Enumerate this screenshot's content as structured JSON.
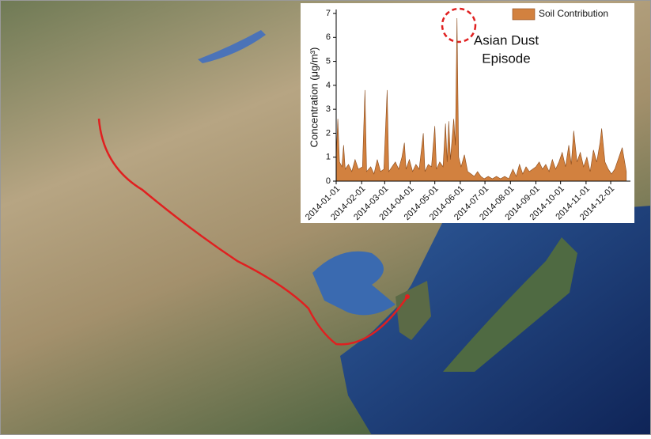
{
  "chart_data": {
    "type": "area",
    "annotation_lines": [
      "Asian Dust",
      "Episode"
    ],
    "y_label": "Concentration (μg/m³)",
    "legend": "upper right",
    "x": [
      "2014-01-01",
      "2014-01-03",
      "2014-01-05",
      "2014-01-08",
      "2014-01-10",
      "2014-01-12",
      "2014-01-16",
      "2014-01-20",
      "2014-01-24",
      "2014-01-28",
      "2014-02-02",
      "2014-02-05",
      "2014-02-07",
      "2014-02-12",
      "2014-02-16",
      "2014-02-20",
      "2014-02-24",
      "2014-02-28",
      "2014-03-04",
      "2014-03-06",
      "2014-03-10",
      "2014-03-14",
      "2014-03-18",
      "2014-03-22",
      "2014-03-25",
      "2014-03-27",
      "2014-03-31",
      "2014-04-04",
      "2014-04-08",
      "2014-04-12",
      "2014-04-15",
      "2014-04-17",
      "2014-04-19",
      "2014-04-23",
      "2014-04-27",
      "2014-05-01",
      "2014-05-03",
      "2014-05-07",
      "2014-05-11",
      "2014-05-14",
      "2014-05-16",
      "2014-05-18",
      "2014-05-20",
      "2014-05-24",
      "2014-05-26",
      "2014-05-28",
      "2014-05-30",
      "2014-06-02",
      "2014-06-06",
      "2014-06-10",
      "2014-06-14",
      "2014-06-18",
      "2014-06-22",
      "2014-06-26",
      "2014-06-30",
      "2014-07-05",
      "2014-07-10",
      "2014-07-15",
      "2014-07-20",
      "2014-07-25",
      "2014-07-30",
      "2014-08-04",
      "2014-08-08",
      "2014-08-12",
      "2014-08-16",
      "2014-08-20",
      "2014-08-24",
      "2014-08-28",
      "2014-09-01",
      "2014-09-05",
      "2014-09-09",
      "2014-09-13",
      "2014-09-17",
      "2014-09-21",
      "2014-09-25",
      "2014-09-29",
      "2014-10-03",
      "2014-10-07",
      "2014-10-11",
      "2014-10-14",
      "2014-10-17",
      "2014-10-21",
      "2014-10-25",
      "2014-10-29",
      "2014-11-02",
      "2014-11-06",
      "2014-11-10",
      "2014-11-14",
      "2014-11-18",
      "2014-11-20",
      "2014-11-24",
      "2014-11-28",
      "2014-12-02",
      "2014-12-06",
      "2014-12-10",
      "2014-12-15",
      "2014-12-20"
    ],
    "series": [
      {
        "name": "Soil Contribution",
        "color": "#d2813f",
        "values": [
          1.0,
          2.6,
          0.8,
          0.6,
          1.5,
          0.5,
          0.7,
          0.4,
          0.9,
          0.5,
          0.6,
          3.8,
          0.4,
          0.6,
          0.3,
          0.9,
          0.4,
          0.5,
          3.8,
          0.4,
          0.6,
          0.8,
          0.5,
          1.0,
          1.6,
          0.5,
          0.9,
          0.4,
          0.7,
          0.5,
          1.4,
          2.0,
          0.4,
          0.7,
          0.6,
          2.3,
          0.5,
          0.8,
          0.6,
          2.4,
          0.8,
          2.5,
          0.9,
          2.6,
          1.5,
          6.8,
          1.0,
          0.6,
          1.1,
          0.4,
          0.3,
          0.2,
          0.4,
          0.2,
          0.1,
          0.2,
          0.1,
          0.2,
          0.1,
          0.2,
          0.1,
          0.5,
          0.2,
          0.7,
          0.3,
          0.6,
          0.4,
          0.5,
          0.6,
          0.8,
          0.5,
          0.7,
          0.4,
          0.9,
          0.5,
          0.8,
          1.2,
          0.6,
          1.5,
          0.7,
          2.1,
          0.8,
          1.2,
          0.6,
          1.0,
          0.4,
          1.3,
          0.8,
          1.6,
          2.2,
          0.8,
          0.5,
          0.3,
          0.5,
          0.9,
          1.4,
          0.4
        ]
      }
    ],
    "xlim": [
      "2014-01-01",
      "2014-12-25"
    ],
    "xticks": [
      "2014-01-01",
      "2014-02-01",
      "2014-03-01",
      "2014-04-01",
      "2014-05-01",
      "2014-06-01",
      "2014-07-01",
      "2014-08-01",
      "2014-09-01",
      "2014-10-01",
      "2014-11-01",
      "2014-12-01"
    ],
    "ylim": [
      0,
      7
    ],
    "yticks": [
      0,
      1,
      2,
      3,
      4,
      5,
      6,
      7
    ]
  }
}
